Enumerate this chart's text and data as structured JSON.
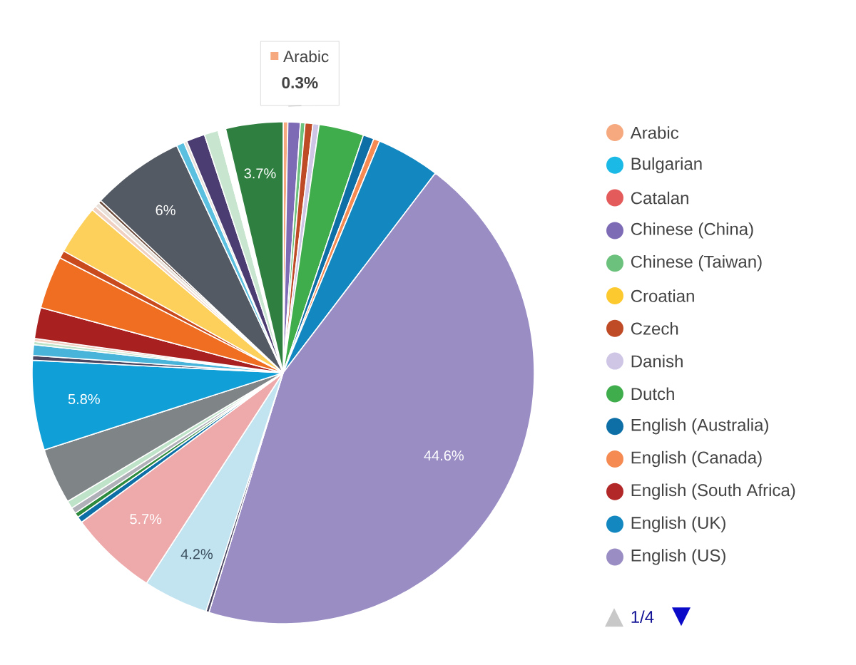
{
  "chart_data": {
    "type": "pie",
    "legend": "right",
    "categories": [
      "Arabic",
      "Bulgarian",
      "Catalan",
      "Chinese (China)",
      "Chinese (Taiwan)",
      "Croatian",
      "Czech",
      "Danish",
      "Dutch",
      "English (Australia)",
      "English (Canada)",
      "English (South Africa)",
      "English (UK)",
      "English (US)",
      null,
      null,
      null,
      null,
      null,
      null,
      null,
      null,
      null,
      null,
      null,
      null,
      null,
      null,
      null,
      null,
      null,
      null,
      null,
      null,
      null,
      null,
      null,
      null,
      null,
      null,
      null
    ],
    "values": [
      0.3,
      null,
      null,
      0.8,
      0.3,
      null,
      0.5,
      0.4,
      2.9,
      0.7,
      0.4,
      null,
      4.1,
      44.6,
      0.2,
      4.2,
      5.7,
      0.4,
      0.3,
      0.4,
      0.5,
      3.6,
      5.8,
      0.3,
      0.7,
      0.2,
      0.2,
      2.0,
      3.4,
      0.5,
      3.2,
      0.3,
      0.3,
      0.2,
      6.0,
      0.5,
      0.2,
      1.2,
      0.9,
      0.5,
      3.7
    ],
    "colors": [
      "#f6a97f",
      "#1bb9e6",
      "#e45b5b",
      "#7e6bb5",
      "#6cc27c",
      "#fcc92f",
      "#bf4b26",
      "#cfc6e6",
      "#3fad4c",
      "#0d6fa6",
      "#f58b52",
      "#b22727",
      "#1287c0",
      "#9a8dc4",
      "#4a4560",
      "#c2e3f0",
      "#eeaaab",
      "#0d6fa6",
      "#2e8b3e",
      "#b0b0b8",
      "#bfe3c8",
      "#7f8487",
      "#109fd6",
      "#4a4560",
      "#48b4da",
      "#bfe3c8",
      "#f0d0c0",
      "#a8201f",
      "#f06e22",
      "#c94a1c",
      "#fdd05c",
      "#f0d0c0",
      "#e8e0d8",
      "#6b4a3a",
      "#535a63",
      "#5bbfe0",
      "#e8e0d8",
      "#4b3c72",
      "#c8e6cf",
      "#ffffff",
      "#2f8040"
    ],
    "value_labels": [
      "0.3%",
      null,
      null,
      null,
      null,
      null,
      null,
      null,
      null,
      null,
      null,
      null,
      null,
      "44.6%",
      null,
      "4.2%",
      "5.7%",
      null,
      null,
      null,
      null,
      null,
      "5.8%",
      null,
      null,
      null,
      null,
      null,
      null,
      null,
      null,
      null,
      null,
      null,
      "6%",
      null,
      null,
      null,
      null,
      null,
      "3.7%"
    ],
    "annotations": [
      "1/4"
    ]
  }
}
